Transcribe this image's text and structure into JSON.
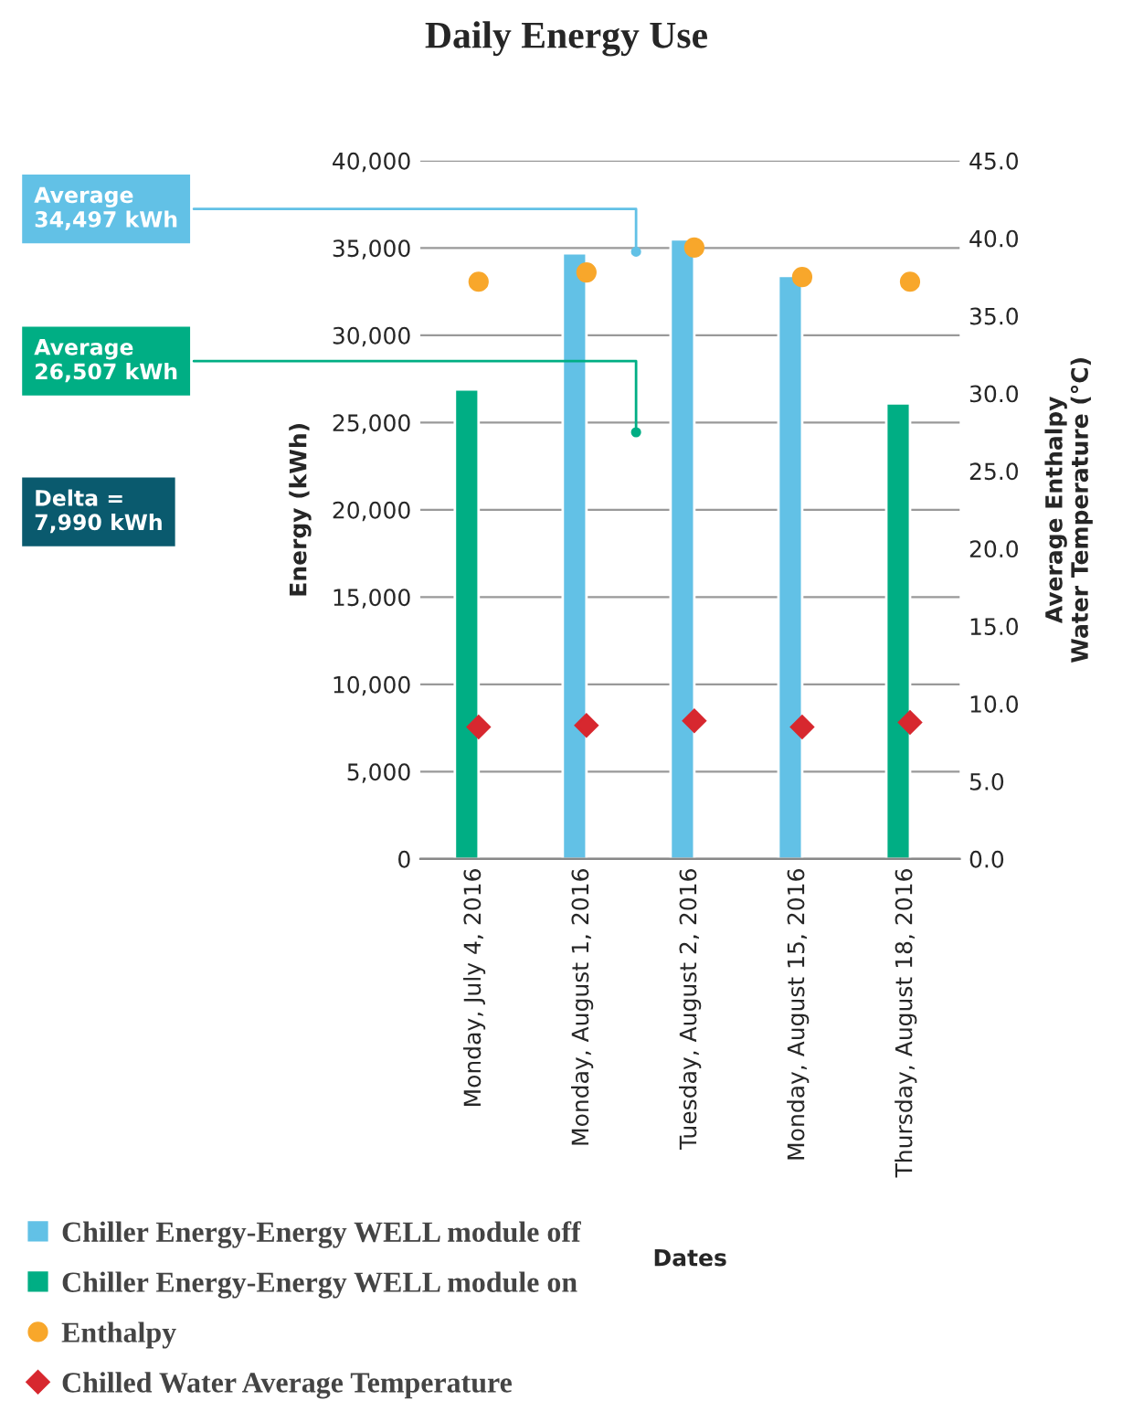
{
  "chart_data": {
    "type": "bar",
    "title": "Daily Energy Use",
    "xlabel": "Dates",
    "ylabel": "Energy (kWh)",
    "y2label": "Average Enthalpy\nWater Temperature (°C)",
    "categories": [
      "Monday, July 4, 2016",
      "Monday, August 1, 2016",
      "Tuesday, August 2, 2016",
      "Monday, August 15, 2016",
      "Thursday, August 18, 2016"
    ],
    "series": [
      {
        "name": "Chiller Energy-Energy WELL module off",
        "color": "#62c1e6",
        "values": [
          null,
          34700,
          35500,
          33400,
          null
        ]
      },
      {
        "name": "Chiller Energy-Energy WELL module on",
        "color": "#00ae84",
        "values": [
          26900,
          null,
          null,
          null,
          26100
        ]
      },
      {
        "name": "Enthalpy",
        "type": "scatter",
        "marker": "circle",
        "axis": "y2",
        "color": "#f8a72b",
        "values": [
          37.2,
          37.8,
          39.4,
          37.5,
          37.2
        ]
      },
      {
        "name": "Chilled Water Average Temperature",
        "type": "scatter",
        "marker": "diamond",
        "axis": "y2",
        "color": "#d7282f",
        "values": [
          8.5,
          8.6,
          8.9,
          8.5,
          8.8
        ]
      }
    ],
    "ylim": [
      0,
      40000
    ],
    "yticks": [
      {
        "value": 0,
        "label": "0"
      },
      {
        "value": 5000,
        "label": "5,000"
      },
      {
        "value": 10000,
        "label": "10,000"
      },
      {
        "value": 15000,
        "label": "15,000"
      },
      {
        "value": 20000,
        "label": "20,000"
      },
      {
        "value": 25000,
        "label": "25,000"
      },
      {
        "value": 30000,
        "label": "30,000"
      },
      {
        "value": 35000,
        "label": "35,000"
      },
      {
        "value": 40000,
        "label": "40,000"
      }
    ],
    "y2lim": [
      0,
      45
    ],
    "y2ticks": [
      {
        "value": 0,
        "label": "0.0"
      },
      {
        "value": 5,
        "label": "5.0"
      },
      {
        "value": 10,
        "label": "10.0"
      },
      {
        "value": 15,
        "label": "15.0"
      },
      {
        "value": 20,
        "label": "20.0"
      },
      {
        "value": 25,
        "label": "25.0"
      },
      {
        "value": 30,
        "label": "30.0"
      },
      {
        "value": 35,
        "label": "35.0"
      },
      {
        "value": 40,
        "label": "40.0"
      },
      {
        "value": 45,
        "label": "45.0"
      }
    ],
    "annotations": [
      "Average\n34,497 kWh",
      "Average\n26,507 kWh",
      "Delta =\n7,990 kWh"
    ],
    "grid": "y",
    "legend": "bottom"
  }
}
